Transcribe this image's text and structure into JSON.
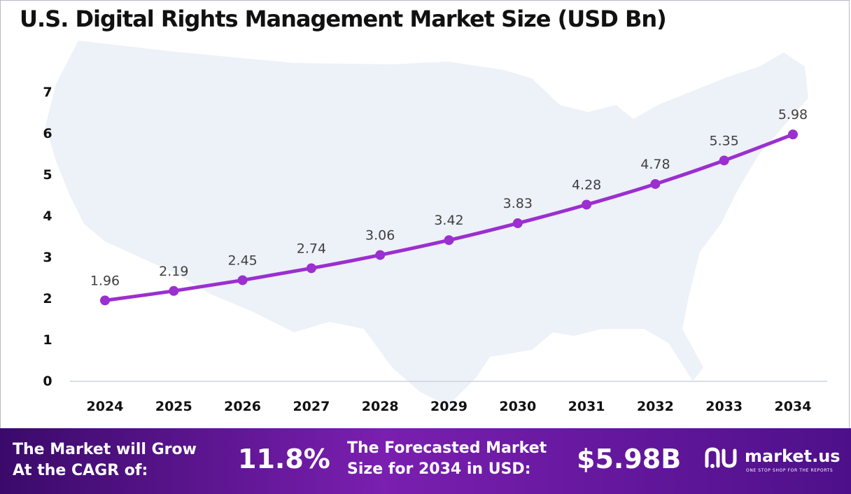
{
  "chart_data": {
    "type": "line",
    "title": "U.S. Digital Rights Management Market Size (USD Bn)",
    "categories": [
      "2024",
      "2025",
      "2026",
      "2027",
      "2028",
      "2029",
      "2030",
      "2031",
      "2032",
      "2033",
      "2034"
    ],
    "series": [
      {
        "name": "Market Size (USD Bn)",
        "values": [
          1.96,
          2.19,
          2.45,
          2.74,
          3.06,
          3.42,
          3.83,
          4.28,
          4.78,
          5.35,
          5.98
        ]
      }
    ],
    "ylim": [
      0,
      7
    ],
    "yticks": [
      "0",
      "1",
      "2",
      "3",
      "4",
      "5",
      "6",
      "7"
    ],
    "xlabel": "",
    "ylabel": "",
    "grid": false,
    "colors": {
      "line": "#9b2fcf",
      "marker": "#9b2fcf",
      "label": "#404040",
      "axis": "#cfd3dd",
      "map": "#edf1f8"
    }
  },
  "footer": {
    "cagr_label_line1": "The Market will Grow",
    "cagr_label_line2": "At the CAGR of:",
    "cagr_value": "11.8%",
    "forecast_label_line1": "The Forecasted Market",
    "forecast_label_line2": "Size for 2034 in USD:",
    "forecast_value": "$5.98B",
    "brand_name": "market.us",
    "brand_tagline": "ONE STOP SHOP FOR THE REPORTS",
    "brand_icon": "market-us-logo-icon"
  }
}
